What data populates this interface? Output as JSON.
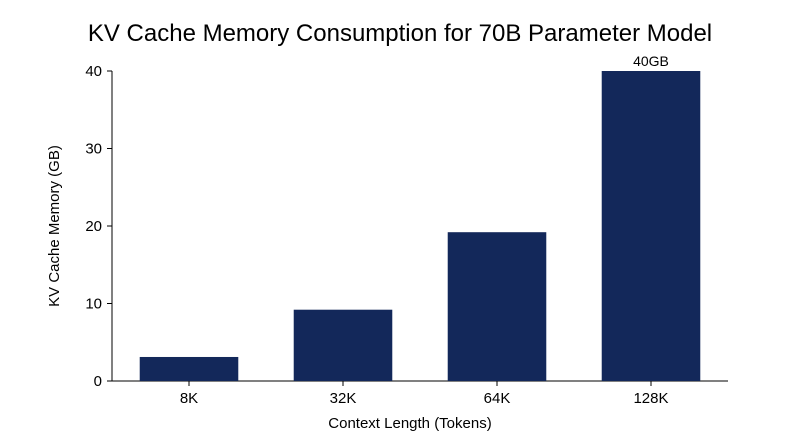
{
  "chart_data": {
    "type": "bar",
    "title": "KV Cache Memory Consumption for 70B Parameter Model",
    "xlabel": "Context Length (Tokens)",
    "ylabel": "KV Cache Memory (GB)",
    "categories": [
      "8K",
      "32K",
      "64K",
      "128K"
    ],
    "values": [
      3.1,
      9.2,
      19.2,
      40
    ],
    "data_labels": [
      "",
      "",
      "",
      "40GB"
    ],
    "ylim": [
      0,
      40
    ],
    "yticks": [
      0,
      10,
      20,
      30,
      40
    ],
    "ytick_labels": [
      "0",
      "10",
      "20",
      "30",
      "40"
    ],
    "grid": false,
    "bar_color": "#13285a"
  }
}
